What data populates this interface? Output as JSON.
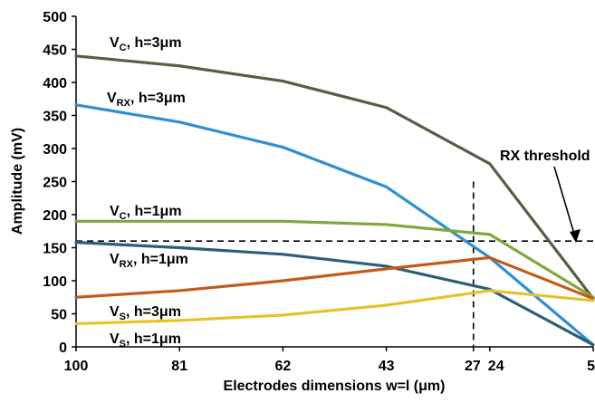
{
  "chart_data": {
    "type": "line",
    "xlabel": "Electrodes dimensions w=l  (μm)",
    "ylabel": "Amplitude (mV)",
    "ylim": [
      0,
      500
    ],
    "y_ticks": [
      0,
      50,
      100,
      150,
      200,
      250,
      300,
      350,
      400,
      450,
      500
    ],
    "x_ticks": [
      "100",
      "81",
      "62",
      "43",
      "27",
      "24",
      "5"
    ],
    "x": [
      100,
      81,
      62,
      43,
      24,
      5
    ],
    "grid": false,
    "series": [
      {
        "name": "VC, h=3μm",
        "label_main": "V",
        "label_sub": "C",
        "label_rest": ", h=3μm",
        "color": "#5b5c45",
        "values": [
          440,
          425,
          402,
          362,
          277,
          73
        ]
      },
      {
        "name": "VRX, h=3μm",
        "label_main": "V",
        "label_sub": "RX",
        "label_rest": ", h=3μm",
        "color": "#2e8fd3",
        "values": [
          366,
          340,
          302,
          242,
          135,
          3
        ]
      },
      {
        "name": "VC, h=1μm",
        "label_main": "V",
        "label_sub": "C",
        "label_rest": ", h=1μm",
        "color": "#7fa83c",
        "values": [
          190,
          190,
          190,
          185,
          170,
          75
        ]
      },
      {
        "name": "VRX, h=1μm",
        "label_main": "V",
        "label_sub": "RX",
        "label_rest": ", h=1μm",
        "color": "#2a5f7a",
        "values": [
          158,
          150,
          140,
          122,
          87,
          3
        ]
      },
      {
        "name": "VS, h=3μm",
        "label_main": "V",
        "label_sub": "S",
        "label_rest": ", h=3μm",
        "color": "#c45a1a",
        "values": [
          75,
          85,
          100,
          118,
          135,
          73
        ]
      },
      {
        "name": "VS, h=1μm",
        "label_main": "V",
        "label_sub": "S",
        "label_rest": ", h=1μm",
        "color": "#e6c229",
        "values": [
          35,
          40,
          48,
          63,
          85,
          70
        ]
      }
    ],
    "threshold": {
      "label": "RX threshold",
      "y_value": 160,
      "x_marker": 27
    }
  }
}
